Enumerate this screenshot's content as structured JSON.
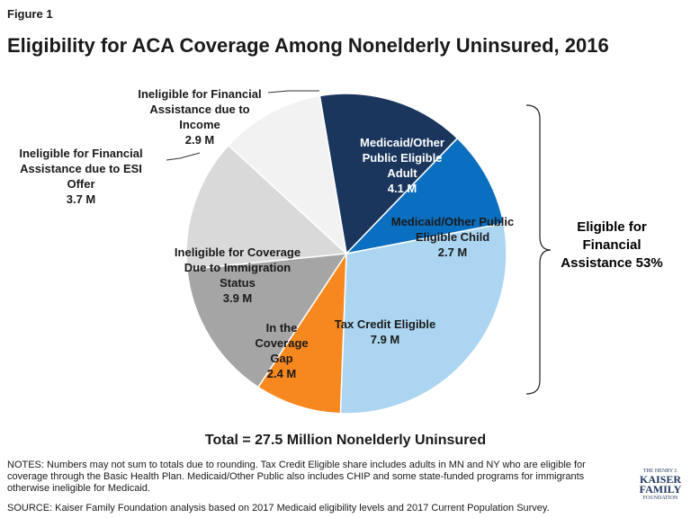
{
  "figure_label": "Figure 1",
  "chart_data": {
    "type": "pie",
    "title": "Eligibility for ACA Coverage Among Nonelderly Uninsured, 2016",
    "categories": [
      "Medicaid/Other Public Eligible Adult",
      "Medicaid/Other Public Eligible Child",
      "Tax Credit Eligible",
      "In the Coverage Gap",
      "Ineligible for Coverage Due to Immigration Status",
      "Ineligible for Financial Assistance due to ESI Offer",
      "Ineligible for Financial Assistance due to Income"
    ],
    "values": [
      4.1,
      2.7,
      7.9,
      2.4,
      3.9,
      3.7,
      2.9
    ],
    "value_labels": [
      "4.1 M",
      "2.7 M",
      "7.9 M",
      "2.4 M",
      "3.9 M",
      "3.7 M",
      "2.9 M"
    ],
    "colors": [
      "#1b365d",
      "#0b6fc0",
      "#abd5f1",
      "#f7881f",
      "#a5a5a5",
      "#d9d9d9",
      "#f2f2f2"
    ],
    "annotation": "Eligible for Financial Assistance 53%",
    "total_label": "Total = 27.5 Million Nonelderly Uninsured"
  },
  "notes": "NOTES: Numbers may not sum to totals due to rounding. Tax Credit Eligible share includes adults in MN and NY who are eligible for coverage through the Basic Health Plan. Medicaid/Other Public also includes CHIP and some state-funded programs for immigrants otherwise ineligible for Medicaid.",
  "source": "SOURCE: Kaiser Family Foundation analysis based on 2017 Medicaid eligibility levels and 2017 Current Population Survey.",
  "logo": {
    "line1": "THE HENRY J.",
    "line2": "KAISER",
    "line3": "FAMILY",
    "line4": "FOUNDATION"
  }
}
